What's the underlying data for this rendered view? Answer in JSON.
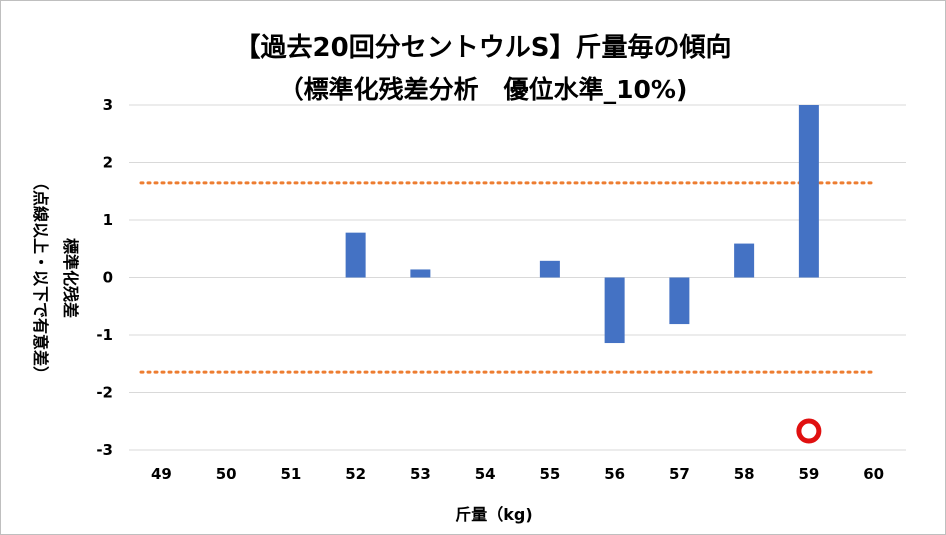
{
  "colors": {
    "bar": "#4472c4",
    "threshold": "#ed7d31",
    "grid": "#d9d9d9",
    "marker_outer": "#e01010",
    "marker_inner": "#ffffff"
  },
  "chart_data": {
    "type": "bar",
    "title": "【過去20回分セントウルS】斤量毎の傾向",
    "subtitle": "（標準化残差分析　優位水準_10%)",
    "xlabel": "斤量（kg)",
    "ylabel_main": "標準化残差",
    "ylabel_sub": "（点線以上・以下で有意差）",
    "categories": [
      "49",
      "50",
      "51",
      "52",
      "53",
      "54",
      "55",
      "56",
      "57",
      "58",
      "59",
      "60"
    ],
    "values": [
      0,
      0,
      0,
      0.78,
      0.14,
      0,
      0.29,
      -1.14,
      -0.81,
      0.59,
      3.0,
      0
    ],
    "ylim": [
      -3,
      3
    ],
    "yticks": [
      "3",
      "2",
      "1",
      "0",
      "-1",
      "-2",
      "-3"
    ],
    "ytick_values": [
      3,
      2,
      1,
      0,
      -1,
      -2,
      -3
    ],
    "thresholds": [
      1.645,
      -1.645
    ],
    "grid": true,
    "legend": "none",
    "marker": {
      "category": "59",
      "y": -2.67
    }
  }
}
